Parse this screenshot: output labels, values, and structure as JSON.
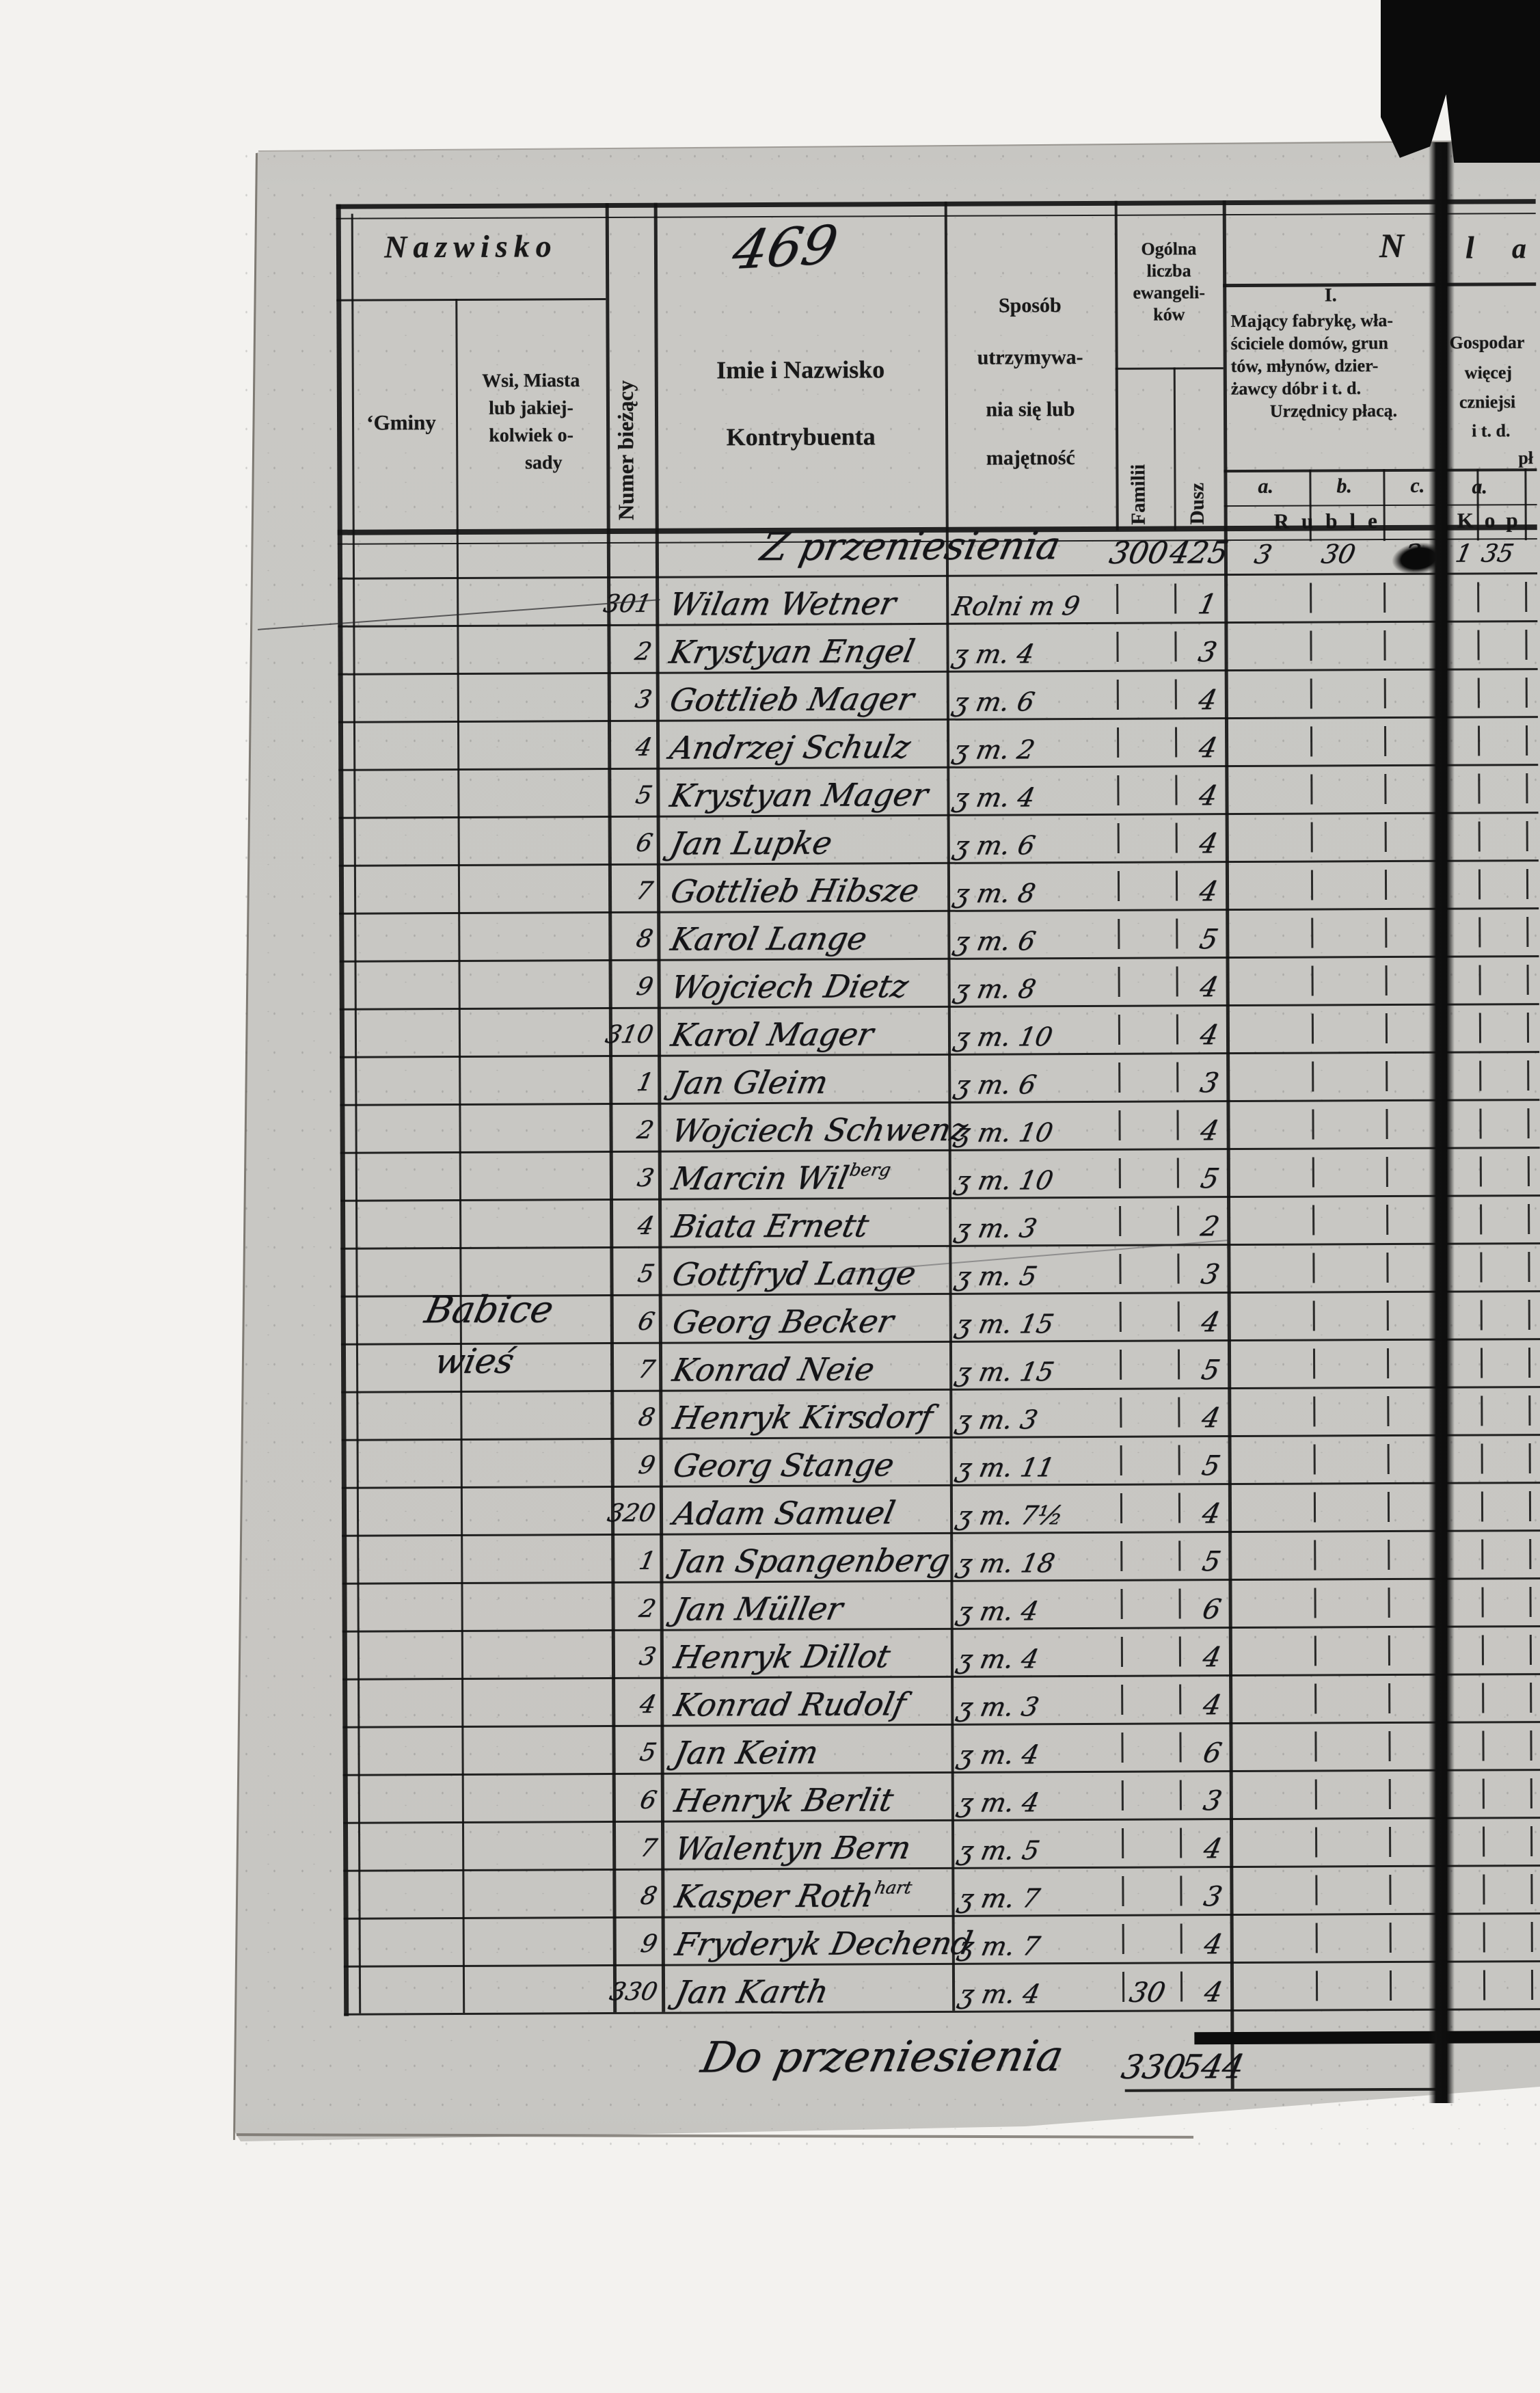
{
  "page_number": "469",
  "header": {
    "nazwisko": "Nazwisko",
    "gminy": "‘Gminy",
    "wsi_lines": [
      "Wsi, Miasta",
      "lub jakiej-",
      "kolwiek o-",
      "sady"
    ],
    "numer_biezacy": "Numer bieżący",
    "imie_lines": [
      "Imie i Nazwisko",
      "Kontrybuenta"
    ],
    "sposob_lines": [
      "Sposób",
      "utrzymywa-",
      "nia się lub",
      "majętność"
    ],
    "ogolna_lines": [
      "Ogólna",
      "liczba",
      "ewangeli-",
      "ków"
    ],
    "familii": "Familii",
    "dusz": "Dusz"
  },
  "section1": {
    "letter": "N",
    "roman": "I.",
    "desc_lines": [
      "Mający fabrykę, wła-",
      "ściciele domów, grun",
      "tów, młynów, dzier-",
      "żawcy dóbr i t. d.",
      "Urzędnicy płacą."
    ],
    "subcols": [
      "a.",
      "b.",
      "c."
    ],
    "currency": "Ruble"
  },
  "section2": {
    "letters": [
      "l",
      "a"
    ],
    "desc_lines": [
      "Gospodar",
      "więcej",
      "czniejsi",
      "i t. d.",
      "pł"
    ],
    "subcols": [
      "a."
    ],
    "currency": "Kop"
  },
  "gmina_entry": {
    "line1": "Babice",
    "line2": "wieś"
  },
  "carry_row": {
    "label": "Z przeniesienia",
    "familii": "300",
    "dusz": "425",
    "ruble": [
      "3",
      "30",
      "3"
    ],
    "kop": [
      "1",
      "35"
    ]
  },
  "rows": [
    {
      "num": "301",
      "name": "Wilam Wetner",
      "occ": "Rolni m 9",
      "dusz": "1"
    },
    {
      "num": "2",
      "name": "Krystyan Engel",
      "occ": "ʒ m. 4",
      "dusz": "3"
    },
    {
      "num": "3",
      "name": "Gottlieb Mager",
      "occ": "ʒ m. 6",
      "dusz": "4"
    },
    {
      "num": "4",
      "name": "Andrzej Schulz",
      "occ": "ʒ m. 2",
      "dusz": "4"
    },
    {
      "num": "5",
      "name": "Krystyan Mager",
      "occ": "ʒ m. 4",
      "dusz": "4"
    },
    {
      "num": "6",
      "name": "Jan Lupke",
      "occ": "ʒ m. 6",
      "dusz": "4"
    },
    {
      "num": "7",
      "name": "Gottlieb Hibsze",
      "occ": "ʒ m. 8",
      "dusz": "4"
    },
    {
      "num": "8",
      "name": "Karol Lange",
      "occ": "ʒ m. 6",
      "dusz": "5"
    },
    {
      "num": "9",
      "name": "Wojciech Dietz",
      "occ": "ʒ m. 8",
      "dusz": "4"
    },
    {
      "num": "310",
      "name": "Karol Mager",
      "occ": "ʒ m. 10",
      "dusz": "4"
    },
    {
      "num": "1",
      "name": "Jan Gleim",
      "occ": "ʒ m. 6",
      "dusz": "3"
    },
    {
      "num": "2",
      "name": "Wojciech Schwenz",
      "occ": "ʒ m. 10",
      "dusz": "4"
    },
    {
      "num": "3",
      "name": "Marcin Wil",
      "sup": "berg",
      "occ": "ʒ m. 10",
      "dusz": "5"
    },
    {
      "num": "4",
      "name": "Biata Ernett",
      "occ": "ʒ m. 3",
      "dusz": "2"
    },
    {
      "num": "5",
      "name": "Gottfryd Lange",
      "occ": "ʒ m. 5",
      "dusz": "3"
    },
    {
      "num": "6",
      "name": "Georg Becker",
      "occ": "ʒ m. 15",
      "dusz": "4"
    },
    {
      "num": "7",
      "name": "Konrad Neie",
      "occ": "ʒ m. 15",
      "dusz": "5"
    },
    {
      "num": "8",
      "name": "Henryk Kirsdorf",
      "occ": "ʒ m. 3",
      "dusz": "4"
    },
    {
      "num": "9",
      "name": "Georg Stange",
      "occ": "ʒ m. 11",
      "dusz": "5"
    },
    {
      "num": "320",
      "name": "Adam Samuel",
      "occ": "ʒ m. 7½",
      "dusz": "4"
    },
    {
      "num": "1",
      "name": "Jan Spangenberg",
      "occ": "ʒ m. 18",
      "dusz": "5"
    },
    {
      "num": "2",
      "name": "Jan Müller",
      "occ": "ʒ m. 4",
      "dusz": "6"
    },
    {
      "num": "3",
      "name": "Henryk Dillot",
      "occ": "ʒ m. 4",
      "dusz": "4"
    },
    {
      "num": "4",
      "name": "Konrad Rudolf",
      "occ": "ʒ m. 3",
      "dusz": "4"
    },
    {
      "num": "5",
      "name": "Jan Keim",
      "occ": "ʒ m. 4",
      "dusz": "6"
    },
    {
      "num": "6",
      "name": "Henryk Berlit",
      "occ": "ʒ m. 4",
      "dusz": "3"
    },
    {
      "num": "7",
      "name": "Walentyn Bern",
      "occ": "ʒ m. 5",
      "dusz": "4"
    },
    {
      "num": "8",
      "name": "Kasper Roth",
      "sup": "hart",
      "occ": "ʒ m. 7",
      "dusz": "3"
    },
    {
      "num": "9",
      "name": "Fryderyk Dechend",
      "occ": "ʒ m. 7",
      "dusz": "4"
    },
    {
      "num": "330",
      "name": "Jan Karth",
      "occ": "ʒ m. 4",
      "familii": "30",
      "dusz": "4"
    }
  ],
  "total_row": {
    "label": "Do przeniesienia",
    "familii": "330",
    "dusz": "544"
  }
}
